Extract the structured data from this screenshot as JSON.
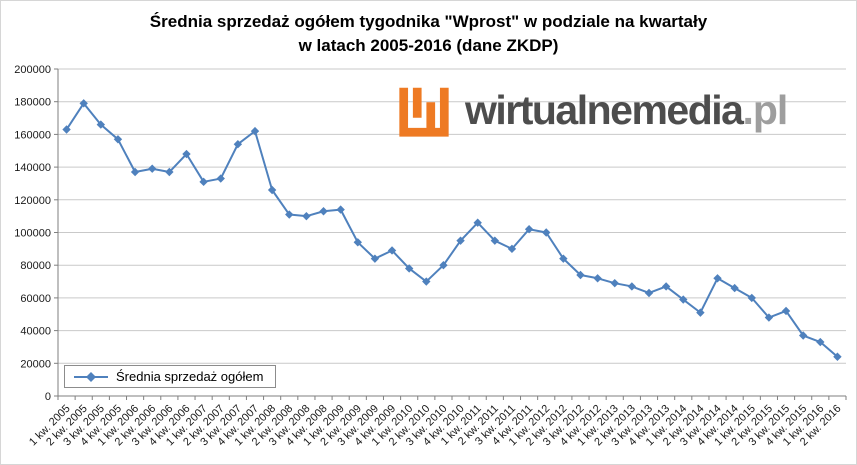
{
  "title": {
    "line1": "Średnia sprzedaż ogółem tygodnika \"Wprost\" w podziale na kwartały",
    "line2": "w latach 2005-2016 (dane ZKDP)"
  },
  "watermark": {
    "brand": "wirtualnemedia",
    "tld": ".pl",
    "logo_icon": "wirtualnemedia-maze-w-icon",
    "logo_color": "#EE7A23",
    "brand_color": "#4D4D4D",
    "tld_color": "#9E9E9E"
  },
  "chart_data": {
    "type": "line",
    "title": "Średnia sprzedaż ogółem tygodnika \"Wprost\" w podziale na kwartały w latach 2005-2016 (dane ZKDP)",
    "xlabel": "",
    "ylabel": "",
    "ylim": [
      0,
      200000
    ],
    "ytick_step": 20000,
    "y_tick_labels": [
      "0",
      "20000",
      "40000",
      "60000",
      "80000",
      "100000",
      "120000",
      "140000",
      "160000",
      "180000",
      "200000"
    ],
    "grid": "horizontal",
    "legend": {
      "position": "bottom-left-inside",
      "entries": [
        "Średnia sprzedaż ogółem"
      ]
    },
    "categories": [
      "1 kw. 2005",
      "2 kw. 2005",
      "3 kw. 2005",
      "4 kw. 2005",
      "1 kw. 2006",
      "2 kw. 2006",
      "3 kw. 2006",
      "4 kw. 2006",
      "1 kw. 2007",
      "2 kw. 2007",
      "3 kw. 2007",
      "4 kw. 2007",
      "1 kw. 2008",
      "2 kw. 2008",
      "3 kw. 2008",
      "4 kw. 2008",
      "1 kw. 2009",
      "2 kw. 2009",
      "3 kw. 2009",
      "4 kw. 2009",
      "1 kw. 2010",
      "2 kw. 2010",
      "3 kw. 2010",
      "4 kw. 2010",
      "1 kw. 2011",
      "2 kw. 2011",
      "3 kw. 2011",
      "4 kw. 2011",
      "1 kw. 2012",
      "2 kw. 2012",
      "3 kw. 2012",
      "4 kw. 2012",
      "1 kw. 2013",
      "2 kw. 2013",
      "3 kw. 2013",
      "4 kw. 2013",
      "1 kw. 2014",
      "2 kw. 2014",
      "3 kw. 2014",
      "4 kw. 2014",
      "1 kw. 2015",
      "2 kw. 2015",
      "3 kw. 2015",
      "4 kw. 2015",
      "1 kw. 2016",
      "2 kw. 2016"
    ],
    "series": [
      {
        "name": "Średnia sprzedaż ogółem",
        "color": "#4F81BD",
        "marker": "diamond",
        "values": [
          163000,
          179000,
          166000,
          157000,
          137000,
          139000,
          137000,
          148000,
          131000,
          133000,
          154000,
          162000,
          126000,
          111000,
          110000,
          113000,
          114000,
          94000,
          84000,
          89000,
          78000,
          70000,
          80000,
          95000,
          106000,
          95000,
          90000,
          102000,
          100000,
          84000,
          74000,
          72000,
          69000,
          67000,
          63000,
          67000,
          59000,
          51000,
          72000,
          66000,
          60000,
          48000,
          52000,
          37000,
          33000,
          24000
        ]
      }
    ]
  }
}
